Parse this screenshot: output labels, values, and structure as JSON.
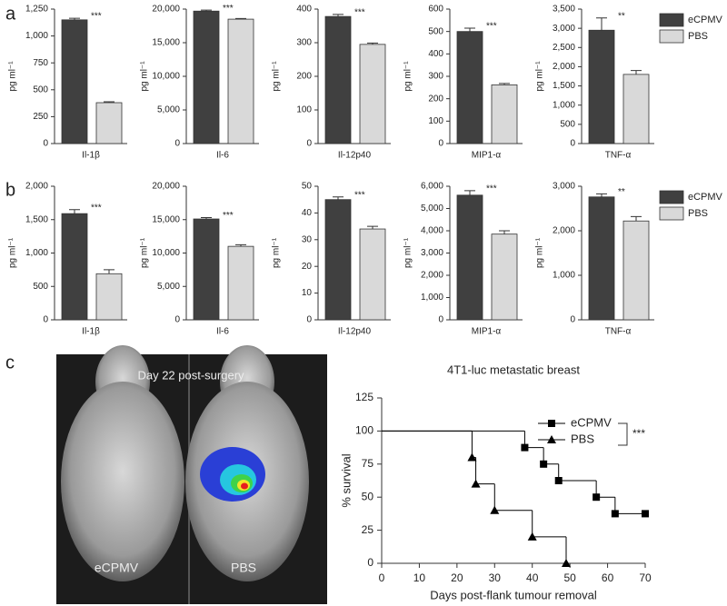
{
  "panel_labels": [
    "a",
    "b",
    "c"
  ],
  "image": {
    "caption": "Day 22 post-surgery",
    "labels": [
      "eCPMV",
      "PBS"
    ]
  },
  "chart_data": [
    {
      "type": "bar",
      "ylabel": "pg ml⁻¹",
      "categories": [
        "Il-1β"
      ],
      "annotation": "***",
      "ylim": [
        0,
        1250
      ],
      "yticks": [
        0,
        250,
        500,
        750,
        {
          "value": 1000,
          "label": "1,000"
        },
        {
          "value": 1250,
          "label": "1,250"
        }
      ],
      "series": [
        {
          "color": "#404040",
          "values": [
            1150
          ],
          "errors": [
            15
          ]
        },
        {
          "color": "#d9d9d9",
          "values": [
            380
          ],
          "errors": [
            8
          ]
        }
      ]
    },
    {
      "type": "bar",
      "ylabel": "pg ml⁻¹",
      "categories": [
        "Il-6"
      ],
      "annotation": "***",
      "ylim": [
        0,
        20000
      ],
      "yticks": [
        0,
        {
          "value": 5000,
          "label": "5,000"
        },
        {
          "value": 10000,
          "label": "10,000"
        },
        {
          "value": 15000,
          "label": "15,000"
        },
        {
          "value": 20000,
          "label": "20,000"
        }
      ],
      "series": [
        {
          "color": "#404040",
          "values": [
            19700
          ],
          "errors": [
            150
          ]
        },
        {
          "color": "#d9d9d9",
          "values": [
            18500
          ],
          "errors": [
            100
          ]
        }
      ]
    },
    {
      "type": "bar",
      "ylabel": "pg ml⁻¹",
      "categories": [
        "Il-12p40"
      ],
      "annotation": "***",
      "ylim": [
        0,
        400
      ],
      "yticks": [
        0,
        100,
        200,
        300,
        400
      ],
      "series": [
        {
          "color": "#404040",
          "values": [
            378
          ],
          "errors": [
            6
          ]
        },
        {
          "color": "#d9d9d9",
          "values": [
            295
          ],
          "errors": [
            4
          ]
        }
      ]
    },
    {
      "type": "bar",
      "ylabel": "pg ml⁻¹",
      "categories": [
        "MIP1-α"
      ],
      "annotation": "***",
      "ylim": [
        0,
        600
      ],
      "yticks": [
        0,
        100,
        200,
        300,
        400,
        500,
        600
      ],
      "series": [
        {
          "color": "#404040",
          "values": [
            500
          ],
          "errors": [
            15
          ]
        },
        {
          "color": "#d9d9d9",
          "values": [
            262
          ],
          "errors": [
            6
          ]
        }
      ]
    },
    {
      "type": "bar",
      "ylabel": "pg ml⁻¹",
      "categories": [
        "TNF-α"
      ],
      "annotation": "**",
      "ylim": [
        0,
        3500
      ],
      "yticks": [
        0,
        500,
        {
          "value": 1000,
          "label": "1,000"
        },
        {
          "value": 1500,
          "label": "1,500"
        },
        {
          "value": 2000,
          "label": "2,000"
        },
        {
          "value": 2500,
          "label": "2,500"
        },
        {
          "value": 3000,
          "label": "3,000"
        },
        {
          "value": 3500,
          "label": "3,500"
        }
      ],
      "series": [
        {
          "name": "eCPMV",
          "color": "#404040",
          "values": [
            2950
          ],
          "errors": [
            320
          ]
        },
        {
          "name": "PBS",
          "color": "#d9d9d9",
          "values": [
            1800
          ],
          "errors": [
            100
          ]
        }
      ]
    },
    {
      "type": "bar",
      "ylabel": "pg ml⁻¹",
      "categories": [
        "Il-1β"
      ],
      "annotation": "***",
      "ylim": [
        0,
        2000
      ],
      "yticks": [
        0,
        500,
        {
          "value": 1000,
          "label": "1,000"
        },
        {
          "value": 1500,
          "label": "1,500"
        },
        {
          "value": 2000,
          "label": "2,000"
        }
      ],
      "series": [
        {
          "color": "#404040",
          "values": [
            1590
          ],
          "errors": [
            60
          ]
        },
        {
          "color": "#d9d9d9",
          "values": [
            690
          ],
          "errors": [
            60
          ]
        }
      ]
    },
    {
      "type": "bar",
      "ylabel": "pg ml⁻¹",
      "categories": [
        "Il-6"
      ],
      "annotation": "***",
      "ylim": [
        0,
        20000
      ],
      "yticks": [
        0,
        {
          "value": 5000,
          "label": "5,000"
        },
        {
          "value": 10000,
          "label": "10,000"
        },
        {
          "value": 15000,
          "label": "15,000"
        },
        {
          "value": 20000,
          "label": "20,000"
        }
      ],
      "series": [
        {
          "color": "#404040",
          "values": [
            15100
          ],
          "errors": [
            200
          ]
        },
        {
          "color": "#d9d9d9",
          "values": [
            11000
          ],
          "errors": [
            250
          ]
        }
      ]
    },
    {
      "type": "bar",
      "ylabel": "pg ml⁻¹",
      "categories": [
        "Il-12p40"
      ],
      "annotation": "***",
      "ylim": [
        0,
        50
      ],
      "yticks": [
        0,
        10,
        20,
        30,
        40,
        50
      ],
      "series": [
        {
          "color": "#404040",
          "values": [
            45
          ],
          "errors": [
            1
          ]
        },
        {
          "color": "#d9d9d9",
          "values": [
            34
          ],
          "errors": [
            1
          ]
        }
      ]
    },
    {
      "type": "bar",
      "ylabel": "pg ml⁻¹",
      "categories": [
        "MIP1-α"
      ],
      "annotation": "***",
      "ylim": [
        0,
        6000
      ],
      "yticks": [
        0,
        {
          "value": 1000,
          "label": "1,000"
        },
        {
          "value": 2000,
          "label": "2,000"
        },
        {
          "value": 3000,
          "label": "3,000"
        },
        {
          "value": 4000,
          "label": "4,000"
        },
        {
          "value": 5000,
          "label": "5,000"
        },
        {
          "value": 6000,
          "label": "6,000"
        }
      ],
      "series": [
        {
          "color": "#404040",
          "values": [
            5600
          ],
          "errors": [
            200
          ]
        },
        {
          "color": "#d9d9d9",
          "values": [
            3850
          ],
          "errors": [
            150
          ]
        }
      ]
    },
    {
      "type": "bar",
      "ylabel": "pg ml⁻¹",
      "categories": [
        "TNF-α"
      ],
      "annotation": "**",
      "ylim": [
        0,
        3000
      ],
      "yticks": [
        0,
        {
          "value": 1000,
          "label": "1,000"
        },
        {
          "value": 2000,
          "label": "2,000"
        },
        {
          "value": 3000,
          "label": "3,000"
        }
      ],
      "series": [
        {
          "name": "eCPMV",
          "color": "#404040",
          "values": [
            2760
          ],
          "errors": [
            70
          ]
        },
        {
          "name": "PBS",
          "color": "#d9d9d9",
          "values": [
            2220
          ],
          "errors": [
            100
          ]
        }
      ]
    },
    {
      "type": "step",
      "title": "4T1-luc metastatic breast",
      "xlabel": "Days post-flank tumour removal",
      "ylabel": "% survival",
      "annotation": "***",
      "xlim": [
        0,
        70
      ],
      "xticks": [
        0,
        10,
        20,
        30,
        40,
        50,
        60,
        70
      ],
      "ylim": [
        0,
        125
      ],
      "yticks": [
        0,
        25,
        50,
        75,
        100,
        125
      ],
      "series": [
        {
          "name": "eCPMV",
          "color": "#000000",
          "marker": "square",
          "x": [
            0,
            38,
            43,
            47,
            57,
            62,
            70
          ],
          "values": [
            100,
            87.5,
            75,
            62.5,
            50,
            37.5,
            37.5
          ]
        },
        {
          "name": "PBS",
          "color": "#000000",
          "marker": "triangle",
          "x": [
            0,
            24,
            25,
            30,
            40,
            49
          ],
          "values": [
            100,
            80,
            60,
            40,
            20,
            0
          ]
        }
      ]
    }
  ]
}
